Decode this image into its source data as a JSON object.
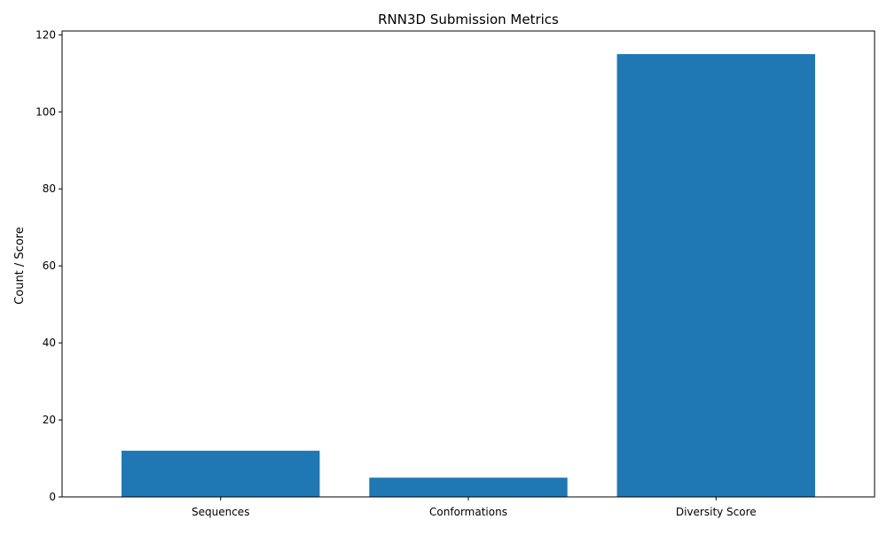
{
  "chart_data": {
    "type": "bar",
    "title": "RNN3D Submission Metrics",
    "xlabel": "",
    "ylabel": "Count / Score",
    "categories": [
      "Sequences",
      "Conformations",
      "Diversity Score"
    ],
    "values": [
      12,
      5,
      115
    ],
    "ylim": [
      0,
      121
    ],
    "yticks": [
      0,
      20,
      40,
      60,
      80,
      100,
      120
    ],
    "grid": false,
    "legend": "none",
    "bar_color": "#1f77b4"
  }
}
